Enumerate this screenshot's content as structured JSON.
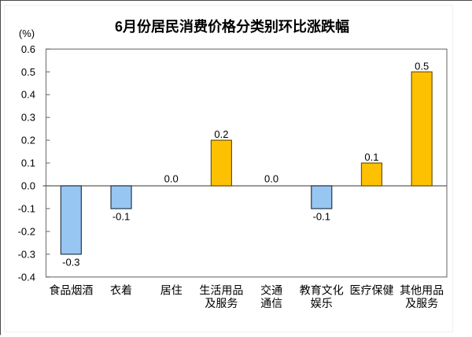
{
  "chart_data": {
    "type": "bar",
    "title": "6月份居民消费价格分类别环比涨跌幅",
    "ylabel": "(%)",
    "categories": [
      [
        "食品烟酒"
      ],
      [
        "衣着"
      ],
      [
        "居住"
      ],
      [
        "生活用品",
        "及服务"
      ],
      [
        "交通",
        "通信"
      ],
      [
        "教育文化",
        "娱乐"
      ],
      [
        "医疗保健"
      ],
      [
        "其他用品",
        "及服务"
      ]
    ],
    "values": [
      -0.3,
      -0.1,
      0.0,
      0.2,
      0.0,
      -0.1,
      0.1,
      0.5
    ],
    "value_labels": [
      "-0.3",
      "-0.1",
      "0.0",
      "0.2",
      "0.0",
      "-0.1",
      "0.1",
      "0.5"
    ],
    "bar_color_names": [
      "light-blue",
      "light-blue",
      "none",
      "gold",
      "none",
      "light-blue",
      "gold",
      "gold"
    ],
    "ylim": [
      -0.4,
      0.6
    ],
    "ytick_labels": [
      "0.6",
      "0.5",
      "0.4",
      "0.3",
      "0.2",
      "0.1",
      "0.0",
      "-0.1",
      "-0.2",
      "-0.3",
      "-0.4"
    ],
    "grid": false,
    "legend_position": "none",
    "colors": {
      "positive_fill": "#FDC101",
      "positive_stroke": "#6E5500",
      "negative_fill": "#97C6F2",
      "negative_stroke": "#24384C",
      "plot_border": "#7b7b7b",
      "zero_line": "#5e5e5e",
      "tick": "#6f6f6f",
      "text": "#000000",
      "frame_dark": "#4a4a4a",
      "frame_light": "#f0f0f0"
    }
  }
}
